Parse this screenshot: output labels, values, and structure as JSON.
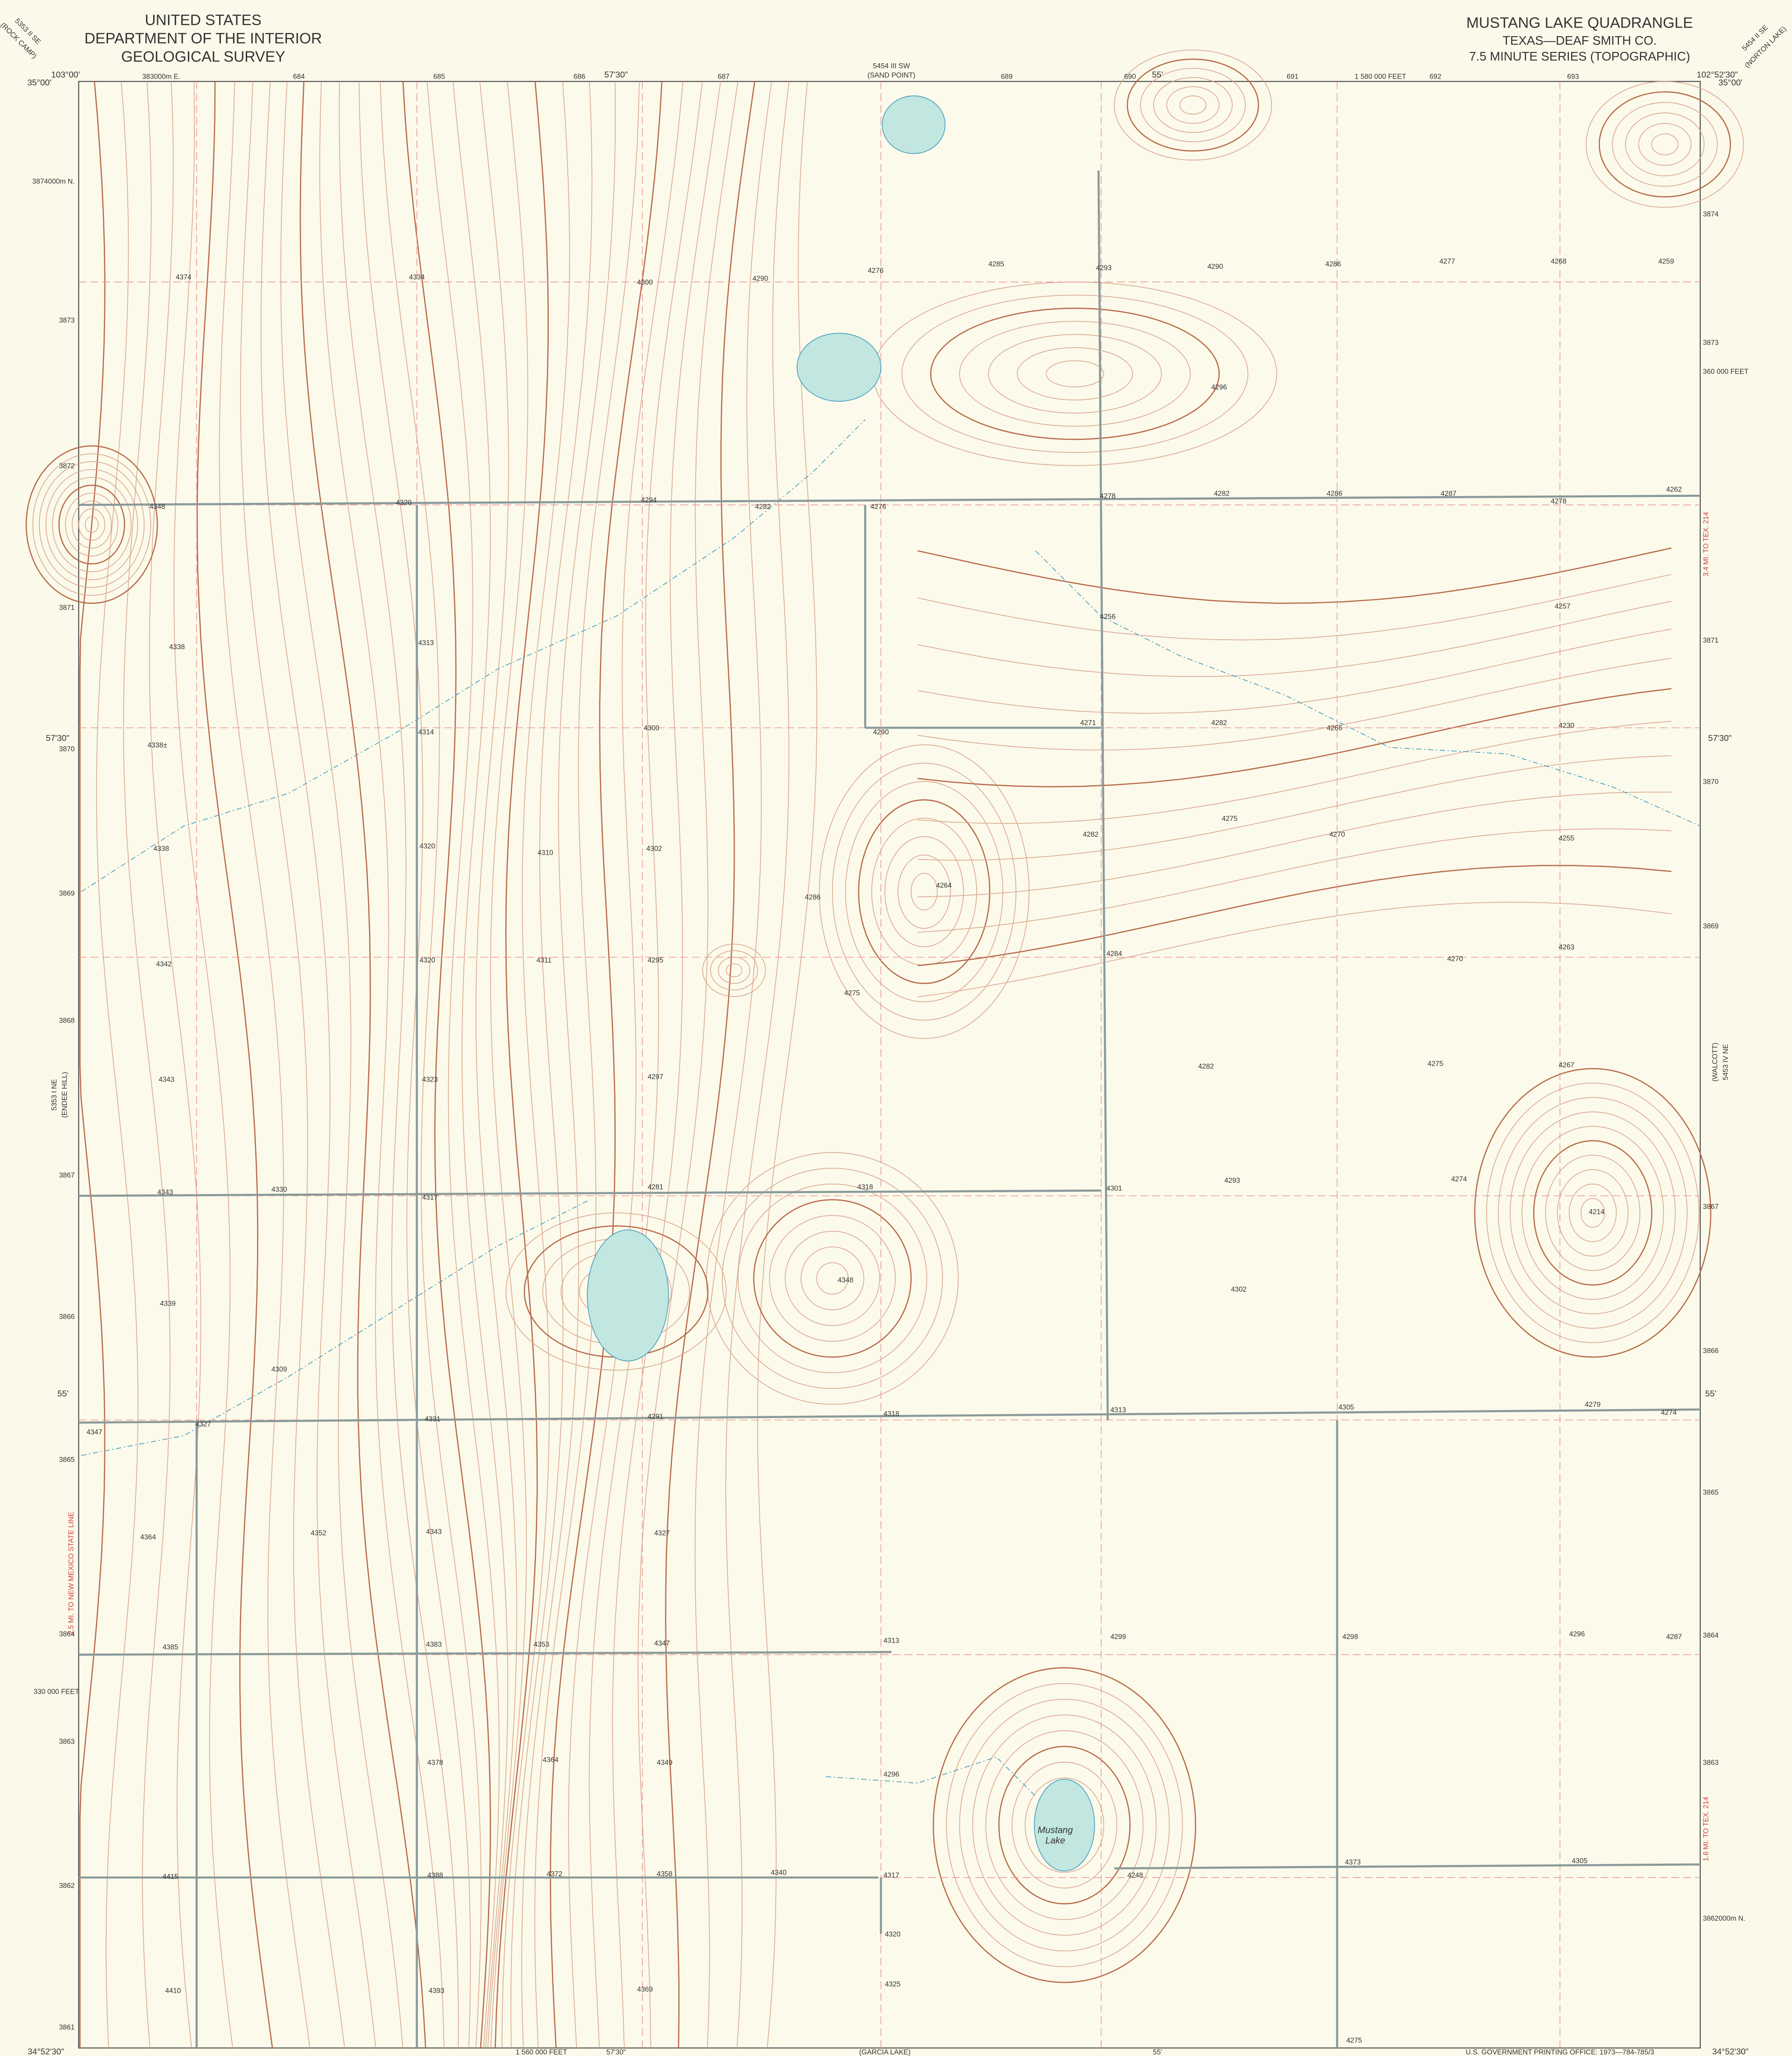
{
  "header": {
    "left": [
      "UNITED STATES",
      "DEPARTMENT OF THE INTERIOR",
      "GEOLOGICAL SURVEY"
    ],
    "right": [
      "MUSTANG LAKE QUADRANGLE",
      "TEXAS—DEAF SMITH CO.",
      "7.5 MINUTE SERIES (TOPOGRAPHIC)"
    ]
  },
  "corners": {
    "top_left_lon": "103°00'",
    "top_left_lat": "35°00'",
    "top_right_lon": "102°52'30\"",
    "top_right_lat": "35°00'",
    "bottom_left_lat": "34°52'30\"",
    "bottom_right_lat": "34°52'30\""
  },
  "graticule": {
    "top_a": "57'30\"",
    "top_b": "55'",
    "left_a": "57'30\"",
    "left_b": "55'",
    "right_a": "57'30\"",
    "right_b": "55'",
    "bottom_a": "57'30\"",
    "bottom_b": "55'"
  },
  "adjacent": {
    "north": [
      "5454 III SW",
      "(SAND POINT)"
    ],
    "northwest": [
      "5353 II SE",
      "(ROCK CAMP)"
    ],
    "northeast": [
      "5454 II SE",
      "(NORTON LAKE)"
    ],
    "east": [
      "(WALCOTT)",
      "5453 IV NE"
    ],
    "west": [
      "5353 I NE",
      "(ENDEE HILL)"
    ],
    "south": "(GARCIA LAKE)"
  },
  "top_grid": [
    "383000m E.",
    "684",
    "685",
    "686",
    "687",
    "689",
    "690",
    "691",
    "1 580 000 FEET",
    "692",
    "693"
  ],
  "left_grid": [
    "3874000m N.",
    "3873",
    "3872",
    "3871",
    "3870",
    "3869",
    "3868",
    "3867",
    "3866",
    "3865",
    "3864",
    "3863",
    "3862",
    "3861"
  ],
  "right_grid": [
    "3874",
    "3873",
    "360 000 FEET",
    "3871",
    "3870",
    "3869",
    "3867",
    "3866",
    "3865",
    "3864",
    "3863",
    "3862000m N."
  ],
  "left_feet": "330 000 FEET",
  "bottom_feet": "1 560 000 FEET",
  "road_notes": {
    "east_top": "3.4 MI. TO TEX. 214",
    "west": "2.5 MI. TO NEW MEXICO STATE LINE",
    "east_bottom": "1.6 MI. TO TEX. 214"
  },
  "printing": "U.S. GOVERNMENT PRINTING OFFICE: 1973—784-785/3",
  "lake_name": [
    "Mustang",
    "Lake"
  ],
  "spot_elevations": [
    "4374",
    "4334",
    "4300",
    "4290",
    "4276",
    "4285",
    "4293",
    "4290",
    "4286",
    "4277",
    "4268",
    "4259",
    "4296",
    "4348",
    "4320",
    "4294",
    "4282",
    "4276",
    "4278",
    "4282",
    "4286",
    "4287",
    "4278",
    "4262",
    "4338",
    "4313",
    "4256",
    "4257",
    "4314",
    "4300",
    "4290",
    "4271",
    "4282",
    "4266",
    "4230",
    "4338±",
    "4275",
    "4282",
    "4270",
    "4255",
    "4338",
    "4320",
    "4310",
    "4302",
    "4286",
    "4264",
    "4284",
    "4263",
    "4342",
    "4320",
    "4311",
    "4295",
    "4275",
    "4270",
    "4282",
    "4275",
    "4267",
    "4343",
    "4323",
    "4297",
    "4343",
    "4330",
    "4317",
    "4281",
    "4318",
    "4301",
    "4293",
    "4274",
    "4214",
    "4348",
    "4302",
    "4339",
    "4309",
    "4347",
    "4327",
    "4331",
    "4291",
    "4318",
    "4313",
    "4305",
    "4279",
    "4274",
    "4364",
    "4352",
    "4343",
    "4327",
    "4385",
    "4383",
    "4353",
    "4347",
    "4313",
    "4299",
    "4298",
    "4296",
    "4287",
    "4378",
    "4364",
    "4349",
    "4296",
    "4317",
    "4340",
    "4358",
    "4372",
    "4388",
    "4415",
    "4373",
    "4305",
    "4248",
    "4320",
    "4325",
    "4369",
    "4393",
    "4410",
    "4275"
  ]
}
